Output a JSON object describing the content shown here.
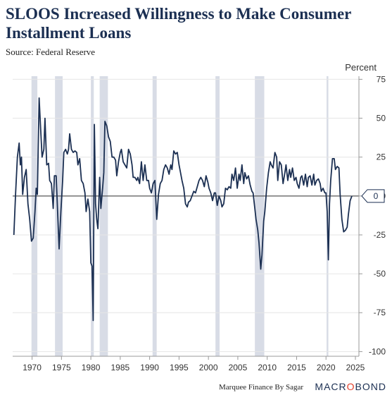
{
  "chart_data": {
    "type": "line",
    "title": "SLOOS Increased Willingness to Make Consumer Installment Loans",
    "subtitle": "Source: Federal Reserve",
    "ylabel": "Percent",
    "xlim": [
      1966.7,
      2025.6
    ],
    "ylim": [
      -103,
      77
    ],
    "yticks": [
      75,
      50,
      25,
      0,
      -25,
      -50,
      -75,
      -100
    ],
    "xticks": [
      1970,
      1975,
      1980,
      1985,
      1990,
      1995,
      2000,
      2005,
      2010,
      2015,
      2020,
      2025
    ],
    "last_value_label": "0",
    "recessions": [
      [
        1969.9,
        1970.9
      ],
      [
        1973.9,
        1975.2
      ],
      [
        1980.0,
        1980.5
      ],
      [
        1981.5,
        1982.9
      ],
      [
        1990.5,
        1991.2
      ],
      [
        2001.2,
        2001.9
      ],
      [
        2007.9,
        2009.5
      ],
      [
        2020.1,
        2020.4
      ]
    ],
    "series": [
      {
        "color": "#1b2f52",
        "points": [
          [
            1966.9,
            -25
          ],
          [
            1967.2,
            2
          ],
          [
            1967.5,
            25
          ],
          [
            1967.8,
            34
          ],
          [
            1968.0,
            20
          ],
          [
            1968.2,
            25
          ],
          [
            1968.4,
            1
          ],
          [
            1968.7,
            12
          ],
          [
            1969.0,
            17
          ],
          [
            1969.3,
            -5
          ],
          [
            1969.6,
            -15
          ],
          [
            1969.9,
            -29
          ],
          [
            1970.2,
            -27
          ],
          [
            1970.5,
            -10
          ],
          [
            1970.7,
            5
          ],
          [
            1970.9,
            1
          ],
          [
            1971.2,
            63
          ],
          [
            1971.5,
            40
          ],
          [
            1971.7,
            25
          ],
          [
            1972.0,
            30
          ],
          [
            1972.2,
            50
          ],
          [
            1972.5,
            20
          ],
          [
            1972.8,
            21
          ],
          [
            1973.0,
            10
          ],
          [
            1973.3,
            8
          ],
          [
            1973.6,
            -8
          ],
          [
            1973.8,
            13
          ],
          [
            1974.1,
            13
          ],
          [
            1974.4,
            -15
          ],
          [
            1974.6,
            -34
          ],
          [
            1974.9,
            -10
          ],
          [
            1975.2,
            10
          ],
          [
            1975.4,
            28
          ],
          [
            1975.7,
            30
          ],
          [
            1976.0,
            27
          ],
          [
            1976.2,
            30
          ],
          [
            1976.4,
            40
          ],
          [
            1976.7,
            30
          ],
          [
            1977.0,
            28
          ],
          [
            1977.3,
            29
          ],
          [
            1977.6,
            28
          ],
          [
            1977.8,
            20
          ],
          [
            1978.1,
            24
          ],
          [
            1978.4,
            10
          ],
          [
            1978.7,
            8
          ],
          [
            1979.0,
            2
          ],
          [
            1979.2,
            -10
          ],
          [
            1979.5,
            -2
          ],
          [
            1979.8,
            -10
          ],
          [
            1980.0,
            -43
          ],
          [
            1980.2,
            -45
          ],
          [
            1980.4,
            -80
          ],
          [
            1980.6,
            46
          ],
          [
            1980.8,
            -5
          ],
          [
            1981.0,
            -15
          ],
          [
            1981.2,
            -21
          ],
          [
            1981.5,
            12
          ],
          [
            1981.7,
            -8
          ],
          [
            1982.0,
            5
          ],
          [
            1982.2,
            15
          ],
          [
            1982.4,
            48
          ],
          [
            1982.7,
            45
          ],
          [
            1983.0,
            38
          ],
          [
            1983.3,
            35
          ],
          [
            1983.6,
            25
          ],
          [
            1983.9,
            25
          ],
          [
            1984.2,
            23
          ],
          [
            1984.4,
            13
          ],
          [
            1984.7,
            22
          ],
          [
            1985.0,
            28
          ],
          [
            1985.2,
            30
          ],
          [
            1985.5,
            22
          ],
          [
            1985.8,
            20
          ],
          [
            1986.1,
            18
          ],
          [
            1986.4,
            30
          ],
          [
            1986.7,
            27
          ],
          [
            1987.0,
            20
          ],
          [
            1987.2,
            12
          ],
          [
            1987.5,
            12
          ],
          [
            1987.8,
            10
          ],
          [
            1988.0,
            12
          ],
          [
            1988.3,
            8
          ],
          [
            1988.6,
            22
          ],
          [
            1988.9,
            10
          ],
          [
            1989.2,
            20
          ],
          [
            1989.5,
            10
          ],
          [
            1989.8,
            10
          ],
          [
            1990.0,
            5
          ],
          [
            1990.3,
            2
          ],
          [
            1990.6,
            8
          ],
          [
            1990.9,
            10
          ],
          [
            1991.2,
            -15
          ],
          [
            1991.5,
            1
          ],
          [
            1991.8,
            8
          ],
          [
            1992.1,
            10
          ],
          [
            1992.4,
            17
          ],
          [
            1992.7,
            20
          ],
          [
            1993.0,
            18
          ],
          [
            1993.3,
            14
          ],
          [
            1993.6,
            20
          ],
          [
            1993.8,
            17
          ],
          [
            1994.1,
            29
          ],
          [
            1994.4,
            27
          ],
          [
            1994.7,
            28
          ],
          [
            1995.0,
            20
          ],
          [
            1995.2,
            16
          ],
          [
            1995.5,
            10
          ],
          [
            1995.8,
            5
          ],
          [
            1996.1,
            -5
          ],
          [
            1996.4,
            -7
          ],
          [
            1996.6,
            -4
          ],
          [
            1996.9,
            -3
          ],
          [
            1997.2,
            0
          ],
          [
            1997.5,
            3
          ],
          [
            1997.8,
            2
          ],
          [
            1998.1,
            6
          ],
          [
            1998.4,
            10
          ],
          [
            1998.7,
            12
          ],
          [
            1999.0,
            10
          ],
          [
            1999.3,
            6
          ],
          [
            1999.6,
            13
          ],
          [
            1999.9,
            9
          ],
          [
            2000.1,
            5
          ],
          [
            2000.4,
            2
          ],
          [
            2000.7,
            -3
          ],
          [
            2001.0,
            2
          ],
          [
            2001.2,
            2
          ],
          [
            2001.5,
            -6
          ],
          [
            2001.8,
            0
          ],
          [
            2002.1,
            -3
          ],
          [
            2002.3,
            -7
          ],
          [
            2002.6,
            -5
          ],
          [
            2002.9,
            5
          ],
          [
            2003.2,
            4
          ],
          [
            2003.5,
            6
          ],
          [
            2003.8,
            5
          ],
          [
            2004.0,
            14
          ],
          [
            2004.3,
            10
          ],
          [
            2004.6,
            18
          ],
          [
            2004.9,
            5
          ],
          [
            2005.2,
            14
          ],
          [
            2005.4,
            10
          ],
          [
            2005.7,
            20
          ],
          [
            2006.0,
            8
          ],
          [
            2006.2,
            15
          ],
          [
            2006.5,
            11
          ],
          [
            2006.8,
            13
          ],
          [
            2007.1,
            7
          ],
          [
            2007.4,
            3
          ],
          [
            2007.6,
            2
          ],
          [
            2007.9,
            -8
          ],
          [
            2008.1,
            -15
          ],
          [
            2008.4,
            -22
          ],
          [
            2008.6,
            -30
          ],
          [
            2008.9,
            -47
          ],
          [
            2009.1,
            -38
          ],
          [
            2009.4,
            -16
          ],
          [
            2009.6,
            -10
          ],
          [
            2009.9,
            5
          ],
          [
            2010.2,
            15
          ],
          [
            2010.5,
            22
          ],
          [
            2010.7,
            20
          ],
          [
            2011.0,
            18
          ],
          [
            2011.3,
            28
          ],
          [
            2011.6,
            25
          ],
          [
            2011.8,
            10
          ],
          [
            2012.1,
            22
          ],
          [
            2012.4,
            20
          ],
          [
            2012.7,
            8
          ],
          [
            2013.0,
            15
          ],
          [
            2013.2,
            20
          ],
          [
            2013.5,
            10
          ],
          [
            2013.8,
            17
          ],
          [
            2014.0,
            12
          ],
          [
            2014.3,
            18
          ],
          [
            2014.6,
            10
          ],
          [
            2014.9,
            12
          ],
          [
            2015.1,
            8
          ],
          [
            2015.4,
            5
          ],
          [
            2015.7,
            12
          ],
          [
            2015.9,
            13
          ],
          [
            2016.2,
            7
          ],
          [
            2016.5,
            14
          ],
          [
            2016.8,
            6
          ],
          [
            2017.0,
            12
          ],
          [
            2017.3,
            13
          ],
          [
            2017.6,
            7
          ],
          [
            2017.9,
            14
          ],
          [
            2018.1,
            7
          ],
          [
            2018.4,
            10
          ],
          [
            2018.7,
            11
          ],
          [
            2019.0,
            8
          ],
          [
            2019.2,
            3
          ],
          [
            2019.5,
            5
          ],
          [
            2019.8,
            2
          ],
          [
            2020.0,
            2
          ],
          [
            2020.2,
            -10
          ],
          [
            2020.4,
            -41
          ],
          [
            2020.6,
            -5
          ],
          [
            2020.8,
            10
          ],
          [
            2021.1,
            24
          ],
          [
            2021.4,
            24
          ],
          [
            2021.6,
            17
          ],
          [
            2021.9,
            19
          ],
          [
            2022.2,
            18
          ],
          [
            2022.4,
            1
          ],
          [
            2022.7,
            -15
          ],
          [
            2023.0,
            -23
          ],
          [
            2023.3,
            -22
          ],
          [
            2023.6,
            -20
          ],
          [
            2023.8,
            -12
          ],
          [
            2024.1,
            -3
          ],
          [
            2024.4,
            0
          ]
        ]
      }
    ]
  },
  "footer": {
    "credit": "Marquee Finance By Sagar",
    "brand_before": "MACR",
    "brand_o": "O",
    "brand_after": "BOND"
  }
}
